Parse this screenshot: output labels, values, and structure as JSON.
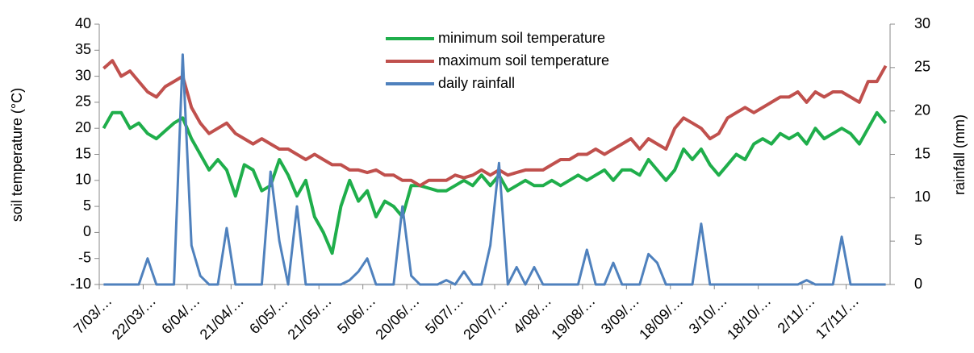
{
  "chart_data": {
    "type": "line",
    "yaxis_label": "soil temperature (°C)",
    "y2axis_label": "rainfall (mm)",
    "categories": [
      "7/03/…",
      null,
      null,
      null,
      null,
      "22/03/…",
      null,
      null,
      null,
      null,
      "6/04/…",
      null,
      null,
      null,
      null,
      "21/04/…",
      null,
      null,
      null,
      null,
      "6/05/…",
      null,
      null,
      null,
      null,
      "21/05/…",
      null,
      null,
      null,
      null,
      "5/06/…",
      null,
      null,
      null,
      null,
      "20/06/…",
      null,
      null,
      null,
      null,
      "5/07/…",
      null,
      null,
      null,
      null,
      "20/07/…",
      null,
      null,
      null,
      null,
      "4/08/…",
      null,
      null,
      null,
      null,
      "19/08/…",
      null,
      null,
      null,
      null,
      "3/09/…",
      null,
      null,
      null,
      null,
      "18/09/…",
      null,
      null,
      null,
      null,
      "3/10/…",
      null,
      null,
      null,
      null,
      "18/10/…",
      null,
      null,
      null,
      null,
      "2/11/…",
      null,
      null,
      null,
      null,
      "17/11/…",
      null,
      null,
      null,
      null
    ],
    "series": [
      {
        "name": "minimum soil temperature",
        "color": "#1fae4b",
        "values": [
          20,
          23,
          23,
          20,
          21,
          19,
          18,
          19.5,
          21,
          22,
          18,
          15,
          12,
          14,
          12,
          7,
          13,
          12,
          8,
          9,
          14,
          11,
          7,
          10,
          3,
          0,
          -4,
          5,
          10,
          6,
          8,
          3,
          6,
          5,
          3,
          9,
          9,
          8.5,
          8,
          8,
          9,
          10,
          9,
          11,
          9,
          11,
          8,
          9,
          10,
          9,
          9,
          10,
          9,
          10,
          11,
          10,
          11,
          12,
          10,
          12,
          12,
          11,
          14,
          12,
          10,
          12,
          16,
          14,
          16,
          13,
          11,
          13,
          15,
          14,
          17,
          18,
          17,
          19,
          18,
          19,
          17,
          20,
          18,
          19,
          20,
          19,
          17,
          20,
          23,
          21
        ]
      },
      {
        "name": "maximum soil temperature",
        "color": "#c0504d",
        "values": [
          31.5,
          33,
          30,
          31,
          29,
          27,
          26,
          28,
          29,
          30,
          24,
          21,
          19,
          20,
          21,
          19,
          18,
          17,
          18,
          17,
          16,
          16,
          15,
          14,
          15,
          14,
          13,
          13,
          12,
          12,
          11.5,
          12,
          11,
          11,
          10,
          10,
          9,
          10,
          10,
          10,
          11,
          10.5,
          11,
          12,
          11,
          12,
          11,
          11.5,
          12,
          12,
          12,
          13,
          14,
          14,
          15,
          15,
          16,
          15,
          16,
          17,
          18,
          16,
          18,
          17,
          16,
          20,
          22,
          21,
          20,
          18,
          19,
          22,
          23,
          24,
          23,
          24,
          25,
          26,
          26,
          27,
          25,
          27,
          26,
          27,
          27,
          26,
          25,
          29,
          29,
          32
        ]
      },
      {
        "name": "daily rainfall",
        "color": "#4f81bd",
        "axis": "y2",
        "values": [
          0,
          0,
          0,
          0,
          0,
          3,
          0,
          0,
          0,
          26.5,
          4.5,
          1,
          0,
          0,
          6.5,
          0,
          0,
          0,
          0,
          13,
          5,
          0,
          9,
          0,
          0,
          0,
          0,
          0,
          0.5,
          1.5,
          3,
          0,
          0,
          0,
          9,
          1,
          0,
          0,
          0,
          0.5,
          0,
          1.5,
          0,
          0,
          4.5,
          14,
          0,
          2,
          0,
          2,
          0,
          0,
          0,
          0,
          0,
          4,
          0,
          0,
          2.5,
          0,
          0,
          0,
          3.5,
          2.5,
          0,
          0,
          0,
          0,
          7,
          0,
          0,
          0,
          0,
          0,
          0,
          0,
          0,
          0,
          0,
          0,
          0.5,
          0,
          0,
          0,
          5.5,
          0,
          0,
          0,
          0,
          0
        ]
      }
    ],
    "ylim": [
      -10,
      40
    ],
    "yticks": [
      -10,
      -5,
      0,
      5,
      10,
      15,
      20,
      25,
      30,
      35,
      40
    ],
    "y2lim": [
      0,
      30
    ],
    "y2ticks": [
      0,
      5,
      10,
      15,
      20,
      25,
      30
    ],
    "grid": false,
    "legend": "top"
  }
}
